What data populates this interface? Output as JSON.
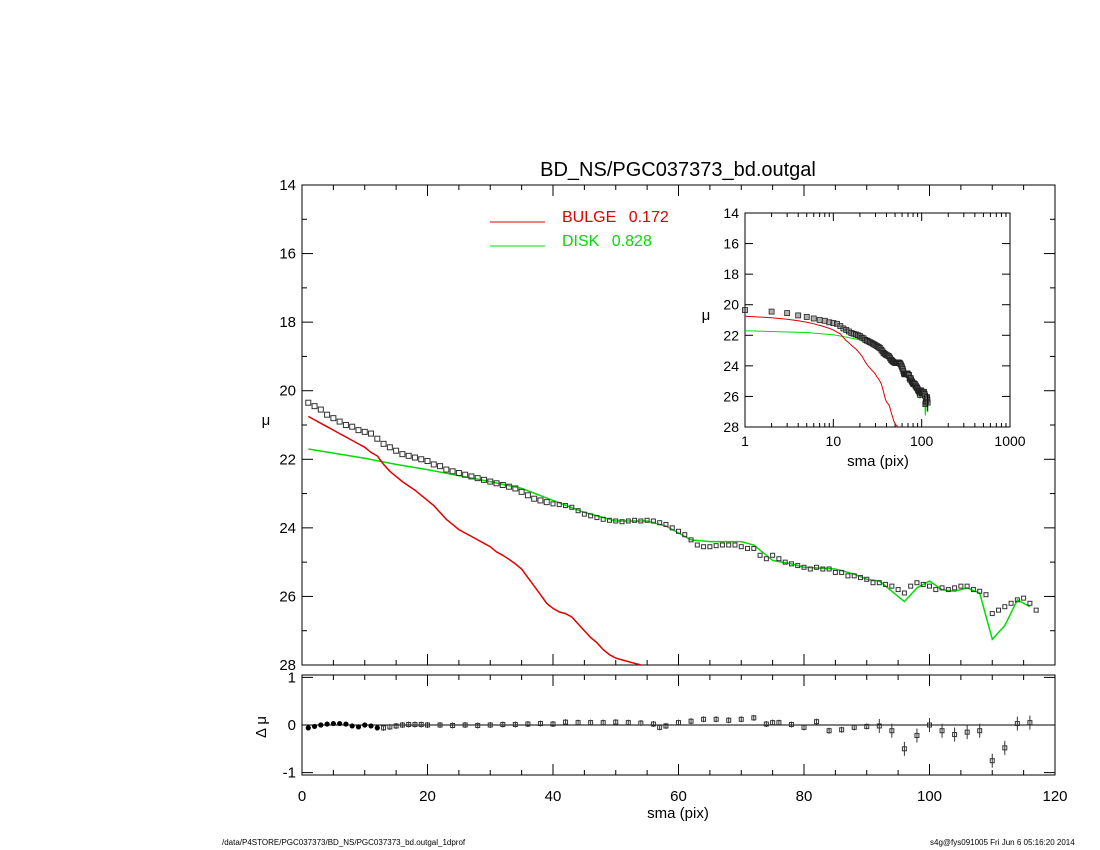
{
  "chart_data": {
    "title": "BD_NS/PGC037373_bd.outgal",
    "type": "line",
    "legend": {
      "placement": "top-center",
      "entries": [
        {
          "name": "BULGE",
          "value": "0.172",
          "color": "#e00000"
        },
        {
          "name": "DISK",
          "value": "0.828",
          "color": "#00dd00"
        }
      ]
    },
    "colors": {
      "bulge": "#e00000",
      "disk": "#00dd00",
      "data": "#000000"
    },
    "main": {
      "xlabel": "sma (pix)",
      "ylabel": "μ",
      "xlim": [
        0,
        120
      ],
      "ylim": [
        28,
        14
      ],
      "xticks": [
        "0",
        "20",
        "40",
        "60",
        "80",
        "100",
        "120"
      ],
      "yticks": [
        "14",
        "16",
        "18",
        "20",
        "22",
        "24",
        "26",
        "28"
      ],
      "observed": [
        [
          1,
          20.35
        ],
        [
          2,
          20.45
        ],
        [
          3,
          20.55
        ],
        [
          4,
          20.7
        ],
        [
          5,
          20.8
        ],
        [
          6,
          20.9
        ],
        [
          7,
          21.0
        ],
        [
          8,
          21.05
        ],
        [
          9,
          21.15
        ],
        [
          10,
          21.2
        ],
        [
          11,
          21.25
        ],
        [
          12,
          21.4
        ],
        [
          13,
          21.55
        ],
        [
          14,
          21.65
        ],
        [
          15,
          21.75
        ],
        [
          16,
          21.85
        ],
        [
          17,
          21.9
        ],
        [
          18,
          21.95
        ],
        [
          19,
          22.0
        ],
        [
          20,
          22.05
        ],
        [
          21,
          22.15
        ],
        [
          22,
          22.2
        ],
        [
          23,
          22.3
        ],
        [
          24,
          22.35
        ],
        [
          25,
          22.4
        ],
        [
          26,
          22.45
        ],
        [
          27,
          22.5
        ],
        [
          28,
          22.55
        ],
        [
          29,
          22.6
        ],
        [
          30,
          22.65
        ],
        [
          31,
          22.7
        ],
        [
          32,
          22.75
        ],
        [
          33,
          22.8
        ],
        [
          34,
          22.85
        ],
        [
          35,
          22.95
        ],
        [
          36,
          23.05
        ],
        [
          37,
          23.15
        ],
        [
          38,
          23.2
        ],
        [
          39,
          23.25
        ],
        [
          40,
          23.3
        ],
        [
          41,
          23.32
        ],
        [
          42,
          23.35
        ],
        [
          43,
          23.4
        ],
        [
          44,
          23.5
        ],
        [
          45,
          23.6
        ],
        [
          46,
          23.65
        ],
        [
          47,
          23.7
        ],
        [
          48,
          23.75
        ],
        [
          49,
          23.78
        ],
        [
          50,
          23.8
        ],
        [
          51,
          23.82
        ],
        [
          52,
          23.8
        ],
        [
          53,
          23.78
        ],
        [
          54,
          23.8
        ],
        [
          55,
          23.78
        ],
        [
          56,
          23.8
        ],
        [
          57,
          23.85
        ],
        [
          58,
          23.9
        ],
        [
          59,
          24.0
        ],
        [
          60,
          24.1
        ],
        [
          61,
          24.2
        ],
        [
          62,
          24.35
        ],
        [
          63,
          24.5
        ],
        [
          64,
          24.55
        ],
        [
          65,
          24.55
        ],
        [
          66,
          24.52
        ],
        [
          67,
          24.5
        ],
        [
          68,
          24.5
        ],
        [
          69,
          24.5
        ],
        [
          70,
          24.55
        ],
        [
          71,
          24.6
        ],
        [
          72,
          24.6
        ],
        [
          73,
          24.8
        ],
        [
          74,
          24.9
        ],
        [
          75,
          24.8
        ],
        [
          76,
          24.9
        ],
        [
          77,
          25.0
        ],
        [
          78,
          25.05
        ],
        [
          79,
          25.1
        ],
        [
          80,
          25.15
        ],
        [
          81,
          25.2
        ],
        [
          82,
          25.15
        ],
        [
          83,
          25.2
        ],
        [
          84,
          25.2
        ],
        [
          85,
          25.3
        ],
        [
          86,
          25.3
        ],
        [
          87,
          25.4
        ],
        [
          88,
          25.4
        ],
        [
          89,
          25.45
        ],
        [
          90,
          25.5
        ],
        [
          91,
          25.6
        ],
        [
          92,
          25.6
        ],
        [
          93,
          25.65
        ],
        [
          94,
          25.7
        ],
        [
          95,
          25.8
        ],
        [
          96,
          25.9
        ],
        [
          97,
          25.7
        ],
        [
          98,
          25.6
        ],
        [
          99,
          25.65
        ],
        [
          100,
          25.7
        ],
        [
          101,
          25.8
        ],
        [
          102,
          25.75
        ],
        [
          103,
          25.8
        ],
        [
          104,
          25.75
        ],
        [
          105,
          25.7
        ],
        [
          106,
          25.7
        ],
        [
          107,
          25.8
        ],
        [
          108,
          25.85
        ],
        [
          109,
          25.95
        ],
        [
          110,
          26.5
        ],
        [
          111,
          26.4
        ],
        [
          112,
          26.3
        ],
        [
          113,
          26.2
        ],
        [
          114,
          26.1
        ],
        [
          115,
          26.05
        ],
        [
          116,
          26.2
        ],
        [
          117,
          26.4
        ]
      ],
      "bulge": [
        [
          1,
          20.75
        ],
        [
          2,
          20.85
        ],
        [
          3,
          20.95
        ],
        [
          4,
          21.05
        ],
        [
          5,
          21.15
        ],
        [
          6,
          21.25
        ],
        [
          7,
          21.35
        ],
        [
          8,
          21.45
        ],
        [
          9,
          21.55
        ],
        [
          10,
          21.65
        ],
        [
          11,
          21.8
        ],
        [
          12,
          21.9
        ],
        [
          13,
          22.15
        ],
        [
          14,
          22.35
        ],
        [
          15,
          22.5
        ],
        [
          16,
          22.65
        ],
        [
          17,
          22.78
        ],
        [
          18,
          22.9
        ],
        [
          19,
          23.05
        ],
        [
          20,
          23.2
        ],
        [
          21,
          23.35
        ],
        [
          22,
          23.55
        ],
        [
          23,
          23.75
        ],
        [
          24,
          23.9
        ],
        [
          25,
          24.05
        ],
        [
          26,
          24.15
        ],
        [
          27,
          24.25
        ],
        [
          28,
          24.35
        ],
        [
          29,
          24.45
        ],
        [
          30,
          24.55
        ],
        [
          31,
          24.7
        ],
        [
          32,
          24.8
        ],
        [
          33,
          24.92
        ],
        [
          34,
          25.05
        ],
        [
          35,
          25.2
        ],
        [
          36,
          25.45
        ],
        [
          37,
          25.7
        ],
        [
          38,
          25.95
        ],
        [
          39,
          26.2
        ],
        [
          40,
          26.35
        ],
        [
          41,
          26.45
        ],
        [
          42,
          26.5
        ],
        [
          43,
          26.6
        ],
        [
          44,
          26.8
        ],
        [
          45,
          27.0
        ],
        [
          46,
          27.2
        ],
        [
          47,
          27.35
        ],
        [
          48,
          27.55
        ],
        [
          49,
          27.7
        ],
        [
          50,
          27.8
        ],
        [
          51,
          27.85
        ],
        [
          52,
          27.9
        ],
        [
          53,
          27.95
        ],
        [
          54,
          28.0
        ]
      ],
      "disk": [
        [
          1,
          21.7
        ],
        [
          5,
          21.82
        ],
        [
          10,
          21.97
        ],
        [
          15,
          22.15
        ],
        [
          20,
          22.3
        ],
        [
          25,
          22.48
        ],
        [
          30,
          22.65
        ],
        [
          35,
          22.85
        ],
        [
          40,
          23.2
        ],
        [
          45,
          23.55
        ],
        [
          50,
          23.8
        ],
        [
          55,
          23.8
        ],
        [
          58,
          23.95
        ],
        [
          60,
          24.15
        ],
        [
          62,
          24.35
        ],
        [
          65,
          24.4
        ],
        [
          70,
          24.4
        ],
        [
          72,
          24.5
        ],
        [
          75,
          24.95
        ],
        [
          78,
          25.05
        ],
        [
          80,
          25.15
        ],
        [
          85,
          25.2
        ],
        [
          88,
          25.35
        ],
        [
          90,
          25.5
        ],
        [
          92,
          25.55
        ],
        [
          95,
          26.0
        ],
        [
          96,
          26.15
        ],
        [
          98,
          25.75
        ],
        [
          100,
          25.55
        ],
        [
          102,
          25.8
        ],
        [
          104,
          25.85
        ],
        [
          106,
          25.75
        ],
        [
          108,
          25.9
        ],
        [
          110,
          27.25
        ],
        [
          112,
          26.85
        ],
        [
          114,
          26.1
        ],
        [
          116,
          26.3
        ]
      ]
    },
    "residual": {
      "ylabel": "Δ μ",
      "xlim": [
        0,
        120
      ],
      "ylim": [
        -1.05,
        1.05
      ],
      "yticks": [
        "1",
        "0",
        "-1"
      ],
      "points": [
        [
          1,
          -0.06
        ],
        [
          2,
          -0.03
        ],
        [
          3,
          0.0
        ],
        [
          4,
          0.02
        ],
        [
          5,
          0.03
        ],
        [
          6,
          0.03
        ],
        [
          7,
          0.02
        ],
        [
          8,
          -0.02
        ],
        [
          9,
          -0.04
        ],
        [
          10,
          0.0
        ],
        [
          11,
          -0.02
        ],
        [
          12,
          -0.06
        ],
        [
          13,
          -0.06
        ],
        [
          14,
          -0.04
        ],
        [
          15,
          -0.02
        ],
        [
          16,
          0.0
        ],
        [
          17,
          0.01
        ],
        [
          18,
          0.01
        ],
        [
          19,
          0.01
        ],
        [
          20,
          0.0
        ],
        [
          22,
          0.0
        ],
        [
          24,
          -0.01
        ],
        [
          26,
          0.0
        ],
        [
          28,
          -0.01
        ],
        [
          30,
          0.0
        ],
        [
          32,
          0.01
        ],
        [
          34,
          0.01
        ],
        [
          36,
          0.02
        ],
        [
          38,
          0.03
        ],
        [
          40,
          0.02
        ],
        [
          42,
          0.06
        ],
        [
          44,
          0.05
        ],
        [
          46,
          0.05
        ],
        [
          48,
          0.05
        ],
        [
          50,
          0.06
        ],
        [
          52,
          0.05
        ],
        [
          54,
          0.04
        ],
        [
          56,
          0.02
        ],
        [
          57,
          -0.05
        ],
        [
          58,
          -0.02
        ],
        [
          60,
          0.05
        ],
        [
          62,
          0.08
        ],
        [
          64,
          0.12
        ],
        [
          66,
          0.12
        ],
        [
          68,
          0.1
        ],
        [
          70,
          0.12
        ],
        [
          72,
          0.15
        ],
        [
          74,
          0.02
        ],
        [
          75,
          0.05
        ],
        [
          76,
          0.05
        ],
        [
          78,
          0.01
        ],
        [
          80,
          -0.05
        ],
        [
          82,
          0.07
        ],
        [
          84,
          -0.12
        ],
        [
          86,
          -0.1
        ],
        [
          88,
          -0.05
        ],
        [
          90,
          -0.03
        ],
        [
          92,
          -0.02
        ],
        [
          94,
          -0.12
        ],
        [
          96,
          -0.5
        ],
        [
          98,
          -0.22
        ],
        [
          100,
          0.0
        ],
        [
          102,
          -0.12
        ],
        [
          104,
          -0.2
        ],
        [
          106,
          -0.15
        ],
        [
          108,
          -0.12
        ],
        [
          110,
          -0.75
        ],
        [
          112,
          -0.48
        ],
        [
          114,
          0.03
        ],
        [
          116,
          0.05
        ]
      ]
    },
    "inset": {
      "xlabel": "sma (pix)",
      "ylabel": "μ",
      "xscale": "log",
      "xlim": [
        1,
        1000
      ],
      "ylim": [
        28,
        14
      ],
      "xticks": [
        "1",
        "10",
        "100",
        "1000"
      ],
      "yticks": [
        "14",
        "16",
        "18",
        "20",
        "22",
        "24",
        "26",
        "28"
      ]
    }
  },
  "footer": {
    "left": "/data/P4STORE/PGC037373/BD_NS/PGC037373_bd.outgal_1dprof",
    "right": "s4g@fys091005  Fri Jun  6 05:16:20 2014"
  }
}
